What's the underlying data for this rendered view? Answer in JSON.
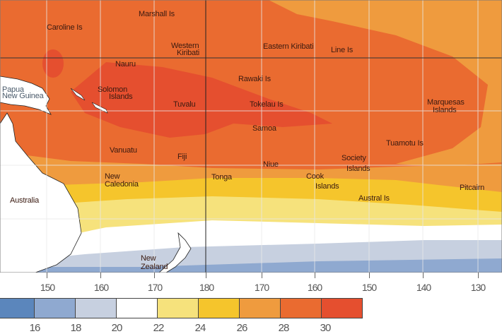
{
  "map": {
    "labels": {
      "marshall": "Marshall Is",
      "caroline": "Caroline Is",
      "western_kiribati_1": "Western",
      "western_kiribati_2": "Kiribati",
      "eastern_kiribati": "Eastern Kiribati",
      "line_is": "Line Is",
      "nauru": "Nauru",
      "rawaki": "Rawaki Is",
      "png_1": "Papua",
      "png_2": "New Guinea",
      "solomon_1": "Solomon",
      "solomon_2": "Islands",
      "tuvalu": "Tuvalu",
      "tokelau": "Tokelau Is",
      "marquesas_1": "Marquesas",
      "marquesas_2": "Islands",
      "samoa": "Samoa",
      "vanuatu": "Vanuatu",
      "fiji": "Fiji",
      "tuamotu": "Tuamotu Is",
      "niue": "Niue",
      "society_1": "Society",
      "society_2": "Islands",
      "new_caledonia_1": "New",
      "new_caledonia_2": "Caledonia",
      "tonga": "Tonga",
      "cook_1": "Cook",
      "cook_2": "Islands",
      "australia": "Australia",
      "austral": "Austral Is",
      "pitcairn": "Pitcairn",
      "nz_1": "New",
      "nz_2": "Zealand"
    },
    "longitude_ticks": [
      "150",
      "160",
      "170",
      "180",
      "170",
      "160",
      "150",
      "140",
      "130"
    ]
  },
  "legend": {
    "colors": [
      "#5b86bc",
      "#8fa9d0",
      "#c7d0e0",
      "#ffffff",
      "#f6e27c",
      "#f5c52c",
      "#ef9b3e",
      "#ea6b30",
      "#e54f2f"
    ],
    "labels": [
      "16",
      "18",
      "20",
      "22",
      "24",
      "26",
      "28",
      "30"
    ]
  }
}
